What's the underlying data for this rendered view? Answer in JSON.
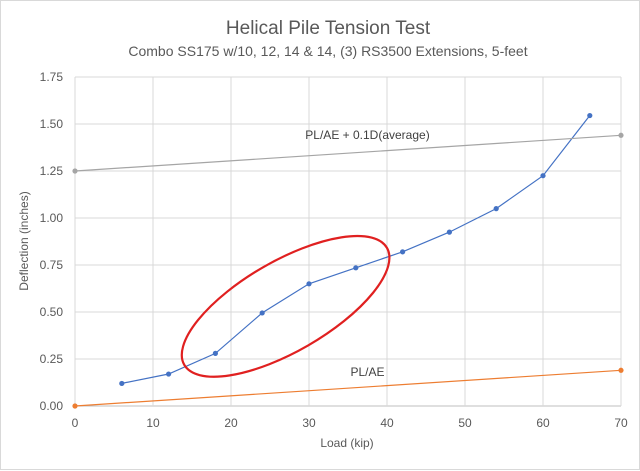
{
  "chart_data": {
    "type": "line",
    "title": "Helical Pile Tension Test",
    "subtitle": "Combo SS175 w/10, 12, 14 & 14, (3) RS3500 Extensions, 5-feet",
    "xlabel": "Load (kip)",
    "ylabel": "Deflection (inches)",
    "xlim": [
      0,
      70
    ],
    "ylim": [
      0,
      1.75
    ],
    "xticks": [
      0,
      10,
      20,
      30,
      40,
      50,
      60,
      70
    ],
    "yticks": [
      0.0,
      0.25,
      0.5,
      0.75,
      1.0,
      1.25,
      1.5,
      1.75
    ],
    "xtick_labels": [
      "0",
      "10",
      "20",
      "30",
      "40",
      "50",
      "60",
      "70"
    ],
    "ytick_labels": [
      "0.00",
      "0.25",
      "0.50",
      "0.75",
      "1.00",
      "1.25",
      "1.50",
      "1.75"
    ],
    "grid": true,
    "legend": "none",
    "series": [
      {
        "color": "#4472c4",
        "x": [
          6,
          12,
          18,
          24,
          30,
          36,
          42,
          48,
          54,
          60,
          66
        ],
        "y": [
          0.12,
          0.17,
          0.28,
          0.495,
          0.65,
          0.735,
          0.82,
          0.925,
          1.05,
          1.225,
          1.545
        ]
      },
      {
        "label": "PL/AE",
        "color": "#ed7d31",
        "x": [
          0,
          70
        ],
        "y": [
          0.0,
          0.19
        ]
      },
      {
        "label": "PL/AE + 0.1D(average)",
        "color": "#a5a5a5",
        "x": [
          0,
          70
        ],
        "y": [
          1.25,
          1.44
        ]
      }
    ],
    "annotations": [
      {
        "text": "PL/AE + 0.1D(average)",
        "x": 37.5,
        "y": 1.42
      },
      {
        "text": "PL/AE",
        "x": 37.5,
        "y": 0.16
      }
    ],
    "highlight_ellipse": {
      "color": "#e02020",
      "center_x": 27,
      "center_y": 0.53,
      "semi_x": 15,
      "semi_y": 0.24,
      "rotation_deg": -30
    }
  }
}
